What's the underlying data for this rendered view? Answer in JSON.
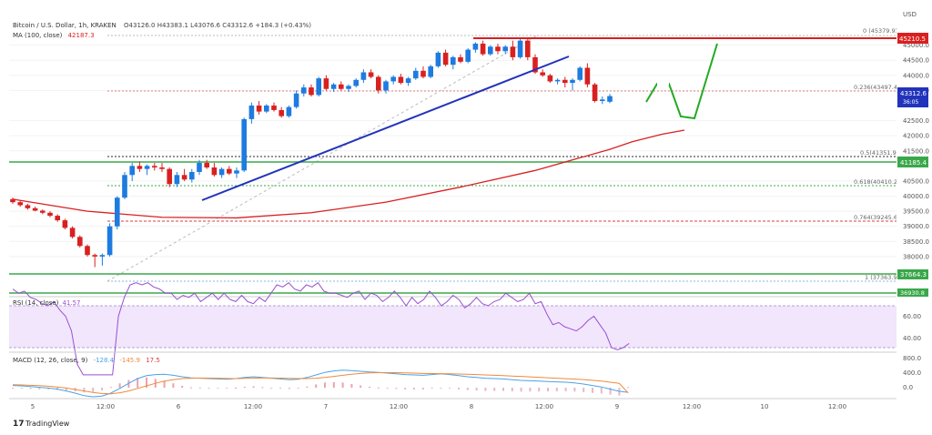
{
  "header": {
    "symbol_line": "Bitcoin / U.S. Dollar, 1h, KRAKEN",
    "ohlc": "O43126.0  H43383.1  L43076.6  C43312.6  +184.3 (+0.43%)",
    "ma_label": "MA (100, close)",
    "ma_value": "42187.3"
  },
  "price_axis": {
    "ticks": [
      "45000.0",
      "44500.0",
      "44000.0",
      "43500.0",
      "42500.0",
      "42000.0",
      "41500.0",
      "40500.0",
      "40000.0",
      "39500.0",
      "39000.0",
      "38500.0",
      "38000.0"
    ],
    "tag_usd": "USD",
    "tag_45210": "45210.5",
    "tag_current": "43312.6",
    "tag_countdown": "36:05",
    "tag_41185": "41185.4",
    "tag_37664": "37664.3",
    "tag_bottom": "36930.8"
  },
  "fib": {
    "f0": "0 (45379.9)",
    "f236": "0.236(43497.4)",
    "f5": "0.5(41351.9)",
    "f618": "0.618(40410.2)",
    "f764": "0.764(39245.6)",
    "f1": "1 (37363.9)"
  },
  "time_axis": {
    "labels": [
      "5",
      "12:00",
      "6",
      "12:00",
      "7",
      "12:00",
      "8",
      "12:00",
      "9",
      "12:00",
      "10",
      "12:00"
    ]
  },
  "rsi": {
    "label": "RSI (14, close)",
    "value": "41.57",
    "ticks": [
      "60.00",
      "40.00"
    ],
    "values": [
      68,
      66,
      67,
      64,
      63,
      61,
      60,
      62,
      58,
      55,
      48,
      32,
      27,
      27,
      27,
      27,
      27,
      27,
      55,
      64,
      70,
      71,
      70,
      71,
      69,
      68,
      66,
      66,
      63,
      65,
      64,
      66,
      62,
      64,
      66,
      63,
      66,
      63,
      62,
      65,
      62,
      61,
      64,
      62,
      66,
      70,
      69,
      71,
      68,
      67,
      70,
      69,
      71,
      67,
      66,
      66,
      65,
      64,
      66,
      67,
      63,
      66,
      65,
      62,
      64,
      67,
      64,
      60,
      64,
      61,
      63,
      67,
      64,
      60,
      62,
      65,
      63,
      59,
      61,
      64,
      61,
      60,
      62,
      63,
      66,
      64,
      62,
      63,
      66,
      61,
      62,
      56,
      51,
      52,
      50,
      49,
      48,
      50,
      53,
      55,
      51,
      47,
      40,
      39,
      40,
      42
    ]
  },
  "macd": {
    "label": "MACD (12, 26, close, 9)",
    "macd_val": "-128.4",
    "signal_val": "-145.9",
    "hist_val": "17.5",
    "ticks": [
      "800.0",
      "400.0",
      "0.0"
    ],
    "macd": [
      60,
      50,
      30,
      10,
      -10,
      -40,
      -90,
      -150,
      -220,
      -250,
      -230,
      -150,
      -20,
      120,
      250,
      330,
      360,
      370,
      340,
      300,
      270,
      260,
      250,
      240,
      230,
      250,
      280,
      300,
      280,
      260,
      240,
      220,
      230,
      280,
      350,
      420,
      460,
      480,
      470,
      450,
      430,
      420,
      400,
      380,
      360,
      350,
      340,
      360,
      380,
      360,
      330,
      300,
      280,
      260,
      250,
      240,
      220,
      200,
      190,
      180,
      170,
      160,
      150,
      130,
      100,
      60,
      20,
      -40,
      -100,
      -128
    ],
    "signal": [
      80,
      75,
      65,
      55,
      40,
      20,
      -10,
      -50,
      -90,
      -130,
      -160,
      -170,
      -140,
      -90,
      -20,
      50,
      120,
      180,
      220,
      250,
      260,
      265,
      262,
      258,
      252,
      250,
      255,
      262,
      265,
      266,
      262,
      256,
      250,
      250,
      260,
      280,
      310,
      340,
      370,
      390,
      405,
      412,
      414,
      412,
      406,
      400,
      392,
      386,
      383,
      380,
      375,
      368,
      360,
      350,
      340,
      330,
      320,
      308,
      296,
      284,
      272,
      260,
      248,
      236,
      222,
      204,
      180,
      150,
      118,
      -146
    ],
    "hist": [
      -20,
      -25,
      -35,
      -45,
      -50,
      -60,
      -80,
      -100,
      -130,
      -120,
      -70,
      20,
      120,
      210,
      270,
      280,
      240,
      190,
      120,
      50,
      10,
      -5,
      -12,
      -18,
      -22,
      0,
      25,
      38,
      15,
      -6,
      -22,
      -36,
      -20,
      30,
      90,
      140,
      150,
      140,
      100,
      60,
      25,
      8,
      -14,
      -32,
      -46,
      -50,
      -52,
      -26,
      -3,
      -20,
      -45,
      -68,
      -80,
      -90,
      -90,
      -90,
      -100,
      -108,
      -106,
      -104,
      -102,
      -100,
      -98,
      -106,
      -122,
      -144,
      -160,
      -190,
      -218,
      17.5
    ]
  },
  "chart_data": {
    "type": "candlestick",
    "title": "Bitcoin / U.S. Dollar, 1h, KRAKEN",
    "ylabel": "USD",
    "ylim": [
      37000,
      46000
    ],
    "candles": [
      [
        39900,
        39950,
        39750,
        39800
      ],
      [
        39800,
        39850,
        39650,
        39700
      ],
      [
        39700,
        39750,
        39550,
        39600
      ],
      [
        39600,
        39650,
        39500,
        39520
      ],
      [
        39520,
        39560,
        39400,
        39450
      ],
      [
        39450,
        39500,
        39300,
        39350
      ],
      [
        39350,
        39400,
        39150,
        39200
      ],
      [
        39200,
        39250,
        38900,
        38950
      ],
      [
        38950,
        39000,
        38600,
        38650
      ],
      [
        38650,
        38700,
        38300,
        38350
      ],
      [
        38350,
        38400,
        38000,
        38050
      ],
      [
        38050,
        38100,
        37650,
        38000
      ],
      [
        38000,
        38100,
        37700,
        38050
      ],
      [
        38050,
        39100,
        38000,
        39000
      ],
      [
        39000,
        40000,
        38900,
        39950
      ],
      [
        39950,
        40800,
        39900,
        40700
      ],
      [
        40700,
        41100,
        40500,
        41000
      ],
      [
        41000,
        41150,
        40800,
        40900
      ],
      [
        40900,
        41050,
        40700,
        41000
      ],
      [
        41000,
        41100,
        40850,
        40950
      ],
      [
        40950,
        41100,
        40800,
        40900
      ],
      [
        40900,
        40950,
        40300,
        40400
      ],
      [
        40400,
        40800,
        40300,
        40700
      ],
      [
        40700,
        40900,
        40500,
        40550
      ],
      [
        40550,
        40900,
        40450,
        40800
      ],
      [
        40800,
        41200,
        40700,
        41100
      ],
      [
        41100,
        41200,
        40900,
        40950
      ],
      [
        40950,
        41100,
        40650,
        40700
      ],
      [
        40700,
        40950,
        40600,
        40900
      ],
      [
        40900,
        41000,
        40700,
        40750
      ],
      [
        40750,
        40950,
        40600,
        40850
      ],
      [
        40850,
        42600,
        40800,
        42550
      ],
      [
        42550,
        43100,
        42400,
        43000
      ],
      [
        43000,
        43150,
        42700,
        42800
      ],
      [
        42800,
        43050,
        42750,
        43000
      ],
      [
        43000,
        43100,
        42800,
        42850
      ],
      [
        42850,
        42950,
        42600,
        42650
      ],
      [
        42650,
        43000,
        42600,
        42950
      ],
      [
        42950,
        43500,
        42900,
        43400
      ],
      [
        43400,
        43700,
        43300,
        43600
      ],
      [
        43600,
        43700,
        43300,
        43350
      ],
      [
        43350,
        43950,
        43300,
        43900
      ],
      [
        43900,
        44000,
        43500,
        43550
      ],
      [
        43550,
        43750,
        43450,
        43700
      ],
      [
        43700,
        43800,
        43500,
        43550
      ],
      [
        43550,
        43700,
        43450,
        43650
      ],
      [
        43650,
        43900,
        43600,
        43850
      ],
      [
        43850,
        44200,
        43750,
        44100
      ],
      [
        44100,
        44200,
        43900,
        43950
      ],
      [
        43950,
        44000,
        43400,
        43500
      ],
      [
        43500,
        43850,
        43400,
        43800
      ],
      [
        43800,
        44000,
        43700,
        43950
      ],
      [
        43950,
        44050,
        43700,
        43750
      ],
      [
        43750,
        43950,
        43650,
        43900
      ],
      [
        43900,
        44250,
        43850,
        44150
      ],
      [
        44150,
        44300,
        43900,
        43950
      ],
      [
        43950,
        44350,
        43900,
        44300
      ],
      [
        44300,
        44800,
        44250,
        44750
      ],
      [
        44750,
        44850,
        44300,
        44350
      ],
      [
        44350,
        44650,
        44200,
        44600
      ],
      [
        44600,
        44700,
        44400,
        44450
      ],
      [
        44450,
        44900,
        44400,
        44850
      ],
      [
        44850,
        45100,
        44750,
        45050
      ],
      [
        45050,
        45150,
        44650,
        44700
      ],
      [
        44700,
        45000,
        44650,
        44950
      ],
      [
        44950,
        45050,
        44700,
        44800
      ],
      [
        44800,
        45000,
        44700,
        44950
      ],
      [
        44950,
        45150,
        44500,
        44600
      ],
      [
        44600,
        45200,
        44550,
        45150
      ],
      [
        45150,
        45200,
        44500,
        44600
      ],
      [
        44600,
        44700,
        44050,
        44100
      ],
      [
        44100,
        44200,
        43950,
        44000
      ],
      [
        44000,
        44050,
        43750,
        43800
      ],
      [
        43800,
        43900,
        43700,
        43850
      ],
      [
        43850,
        43950,
        43600,
        43750
      ],
      [
        43750,
        43900,
        43500,
        43850
      ],
      [
        43850,
        44300,
        43800,
        44250
      ],
      [
        44250,
        44400,
        43600,
        43700
      ],
      [
        43700,
        43750,
        43100,
        43150
      ],
      [
        43150,
        43300,
        43050,
        43200
      ],
      [
        43126,
        43383,
        43077,
        43313
      ]
    ],
    "ma100_label": "MA (100, close)",
    "ma100": [
      [
        0,
        39900
      ],
      [
        10,
        39500
      ],
      [
        20,
        39300
      ],
      [
        30,
        39280
      ],
      [
        40,
        39450
      ],
      [
        50,
        39800
      ],
      [
        60,
        40300
      ],
      [
        70,
        40850
      ],
      [
        80,
        41550
      ],
      [
        83,
        41800
      ],
      [
        87,
        42050
      ],
      [
        90,
        42187
      ]
    ],
    "annotations": [
      "Fib retracement 0 → 1",
      "Bullish trend line",
      "Projected path"
    ]
  }
}
